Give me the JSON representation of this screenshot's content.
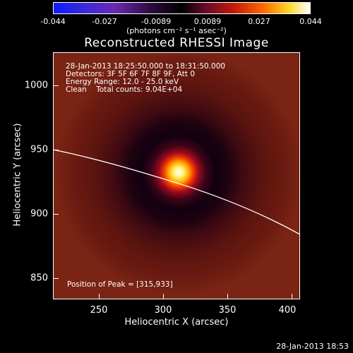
{
  "colorbar": {
    "ticks": [
      "-0.044",
      "-0.027",
      "-0.0089",
      "0.0089",
      "0.027",
      "0.044"
    ],
    "units": "(photons cm⁻² s⁻¹ asec⁻²)"
  },
  "title": "Reconstructed RHESSI Image",
  "info": {
    "line1": "28-Jan-2013 18:25:50.000 to 18:31:50.000",
    "line2": "Detectors: 3F 5F 6F 7F 8F 9F, Att 0",
    "line3": "Energy Range: 12.0 - 25.0 keV",
    "line4": "Clean    Total counts: 9.04E+04",
    "peak": "Position of Peak = [315,933]"
  },
  "axes": {
    "xlabel": "Heliocentric X (arcsec)",
    "ylabel": "Heliocentric Y (arcsec)",
    "xticks": [
      "250",
      "300",
      "350",
      "400"
    ],
    "yticks": [
      "1000",
      "950",
      "900",
      "850"
    ]
  },
  "timestamp": "28-Jan-2013 18:53",
  "colors": {
    "limb": "#ffffff",
    "background": "#000000"
  }
}
